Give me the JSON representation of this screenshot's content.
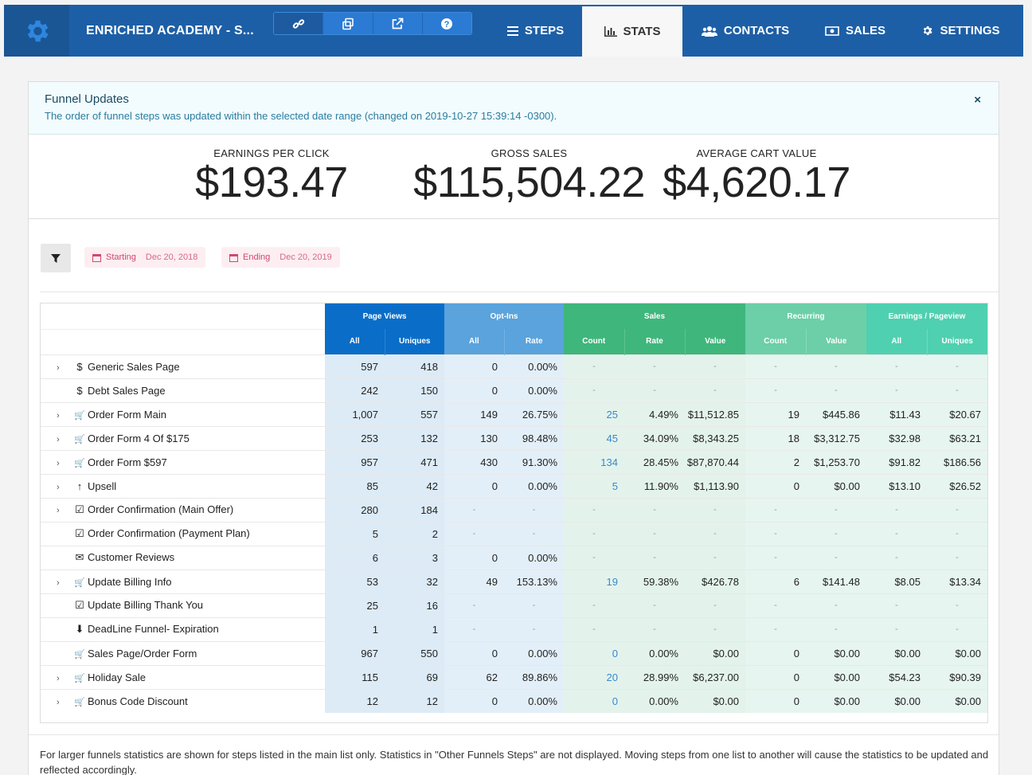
{
  "nav": {
    "app_name": "ENRICHED ACADEMY - S...",
    "tabs": [
      {
        "label": "STEPS",
        "icon": "list-icon"
      },
      {
        "label": "STATS",
        "icon": "bar-chart-icon"
      },
      {
        "label": "CONTACTS",
        "icon": "users-icon"
      },
      {
        "label": "SALES",
        "icon": "money-icon"
      },
      {
        "label": "SETTINGS",
        "icon": "gear-icon"
      }
    ],
    "active_tab": "STATS",
    "icons": [
      "link-icon",
      "copy-icon",
      "external-link-icon",
      "help-icon"
    ]
  },
  "alert": {
    "title": "Funnel Updates",
    "message": "The order of funnel steps was updated within the selected date range (changed on 2019-10-27 15:39:14 -0300).",
    "close": "×"
  },
  "metrics": [
    {
      "label": "EARNINGS PER CLICK",
      "value": "$193.47"
    },
    {
      "label": "GROSS SALES",
      "value": "$115,504.22"
    },
    {
      "label": "AVERAGE CART VALUE",
      "value": "$4,620.17"
    }
  ],
  "dates": {
    "start_label": "Starting",
    "start_value": "Dec 20, 2018",
    "end_label": "Ending",
    "end_value": "Dec 20, 2019"
  },
  "table": {
    "groups": [
      "Page Views",
      "Opt-Ins",
      "Sales",
      "Recurring",
      "Earnings / Pageview"
    ],
    "columns": [
      "All",
      "Uniques",
      "All",
      "Rate",
      "Count",
      "Rate",
      "Value",
      "Count",
      "Value",
      "All",
      "Uniques"
    ],
    "rows": [
      {
        "chev": "›",
        "icon": "$",
        "name": "Generic Sales Page",
        "v": [
          "597",
          "418",
          "0",
          "0.00%",
          "-",
          "-",
          "-",
          "-",
          "-",
          "-",
          "-"
        ]
      },
      {
        "chev": "",
        "icon": "$",
        "name": "Debt Sales Page",
        "v": [
          "242",
          "150",
          "0",
          "0.00%",
          "-",
          "-",
          "-",
          "-",
          "-",
          "-",
          "-"
        ]
      },
      {
        "chev": "›",
        "icon": "🛒",
        "name": "Order Form Main",
        "v": [
          "1,007",
          "557",
          "149",
          "26.75%",
          "25",
          "4.49%",
          "$11,512.85",
          "19",
          "$445.86",
          "$11.43",
          "$20.67"
        ]
      },
      {
        "chev": "›",
        "icon": "🛒",
        "name": "Order Form 4 Of $175",
        "v": [
          "253",
          "132",
          "130",
          "98.48%",
          "45",
          "34.09%",
          "$8,343.25",
          "18",
          "$3,312.75",
          "$32.98",
          "$63.21"
        ]
      },
      {
        "chev": "›",
        "icon": "🛒",
        "name": "Order Form $597",
        "v": [
          "957",
          "471",
          "430",
          "91.30%",
          "134",
          "28.45%",
          "$87,870.44",
          "2",
          "$1,253.70",
          "$91.82",
          "$186.56"
        ]
      },
      {
        "chev": "›",
        "icon": "↑",
        "name": "Upsell",
        "v": [
          "85",
          "42",
          "0",
          "0.00%",
          "5",
          "11.90%",
          "$1,113.90",
          "0",
          "$0.00",
          "$13.10",
          "$26.52"
        ]
      },
      {
        "chev": "›",
        "icon": "☑",
        "name": "Order Confirmation (Main Offer)",
        "v": [
          "280",
          "184",
          "-",
          "-",
          "-",
          "-",
          "-",
          "-",
          "-",
          "-",
          "-"
        ]
      },
      {
        "chev": "",
        "icon": "☑",
        "name": "Order Confirmation (Payment Plan)",
        "v": [
          "5",
          "2",
          "-",
          "-",
          "-",
          "-",
          "-",
          "-",
          "-",
          "-",
          "-"
        ]
      },
      {
        "chev": "",
        "icon": "✉",
        "name": "Customer Reviews",
        "v": [
          "6",
          "3",
          "0",
          "0.00%",
          "-",
          "-",
          "-",
          "-",
          "-",
          "-",
          "-"
        ]
      },
      {
        "chev": "›",
        "icon": "🛒",
        "name": "Update Billing Info",
        "v": [
          "53",
          "32",
          "49",
          "153.13%",
          "19",
          "59.38%",
          "$426.78",
          "6",
          "$141.48",
          "$8.05",
          "$13.34"
        ]
      },
      {
        "chev": "",
        "icon": "☑",
        "name": "Update Billing Thank You",
        "v": [
          "25",
          "16",
          "-",
          "-",
          "-",
          "-",
          "-",
          "-",
          "-",
          "-",
          "-"
        ]
      },
      {
        "chev": "",
        "icon": "⬇",
        "name": "DeadLine Funnel- Expiration",
        "v": [
          "1",
          "1",
          "-",
          "-",
          "-",
          "-",
          "-",
          "-",
          "-",
          "-",
          "-"
        ]
      },
      {
        "chev": "",
        "icon": "🛒",
        "name": "Sales Page/Order Form",
        "v": [
          "967",
          "550",
          "0",
          "0.00%",
          "0",
          "0.00%",
          "$0.00",
          "0",
          "$0.00",
          "$0.00",
          "$0.00"
        ]
      },
      {
        "chev": "›",
        "icon": "🛒",
        "name": "Holiday Sale",
        "v": [
          "115",
          "69",
          "62",
          "89.86%",
          "20",
          "28.99%",
          "$6,237.00",
          "0",
          "$0.00",
          "$54.23",
          "$90.39"
        ]
      },
      {
        "chev": "›",
        "icon": "🛒",
        "name": "Bonus Code Discount",
        "v": [
          "12",
          "12",
          "0",
          "0.00%",
          "0",
          "0.00%",
          "$0.00",
          "0",
          "$0.00",
          "$0.00",
          "$0.00"
        ]
      }
    ]
  },
  "footer_note": "For larger funnels statistics are shown for steps listed in the main list only. Statistics in \"Other Funnels Steps\" are not displayed. Moving steps from one list to another will cause the statistics to be updated and reflected accordingly.",
  "colors": {
    "nav_bg": "#1d5fa6",
    "page_views": "#0a6ec8",
    "opt_ins": "#5aa3dc",
    "sales": "#3fb67c",
    "recurring": "#6ccfa8",
    "earnings": "#4fd0b0"
  }
}
